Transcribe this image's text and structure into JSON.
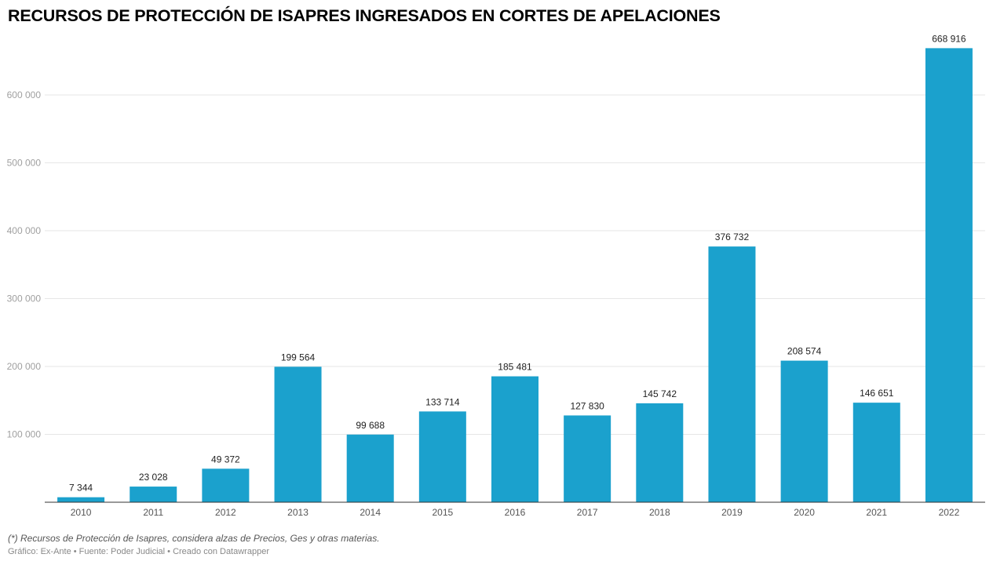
{
  "chart_data": {
    "type": "bar",
    "title": "RECURSOS DE PROTECCIÓN DE ISAPRES INGRESADOS EN CORTES DE APELACIONES",
    "categories": [
      "2010",
      "2011",
      "2012",
      "2013",
      "2014",
      "2015",
      "2016",
      "2017",
      "2018",
      "2019",
      "2020",
      "2021",
      "2022"
    ],
    "values": [
      7344,
      23028,
      49372,
      199564,
      99688,
      133714,
      185481,
      127830,
      145742,
      376732,
      208574,
      146651,
      668916
    ],
    "value_labels": [
      "7 344",
      "23 028",
      "49 372",
      "199 564",
      "99 688",
      "133 714",
      "185 481",
      "127 830",
      "145 742",
      "376 732",
      "208 574",
      "146 651",
      "668 916"
    ],
    "yticks": [
      100000,
      200000,
      300000,
      400000,
      500000,
      600000
    ],
    "ytick_labels": [
      "100 000",
      "200 000",
      "300 000",
      "400 000",
      "500 000",
      "600 000"
    ],
    "ylim": [
      0,
      690000
    ],
    "xlabel": "",
    "ylabel": "",
    "grid": true,
    "bar_color": "#1ba1cd",
    "note": "(*) Recursos de Protección de Isapres, considera alzas de Precios, Ges y otras materias.",
    "source": "Gráfico: Ex-Ante • Fuente: Poder Judicial • Creado con Datawrapper"
  }
}
